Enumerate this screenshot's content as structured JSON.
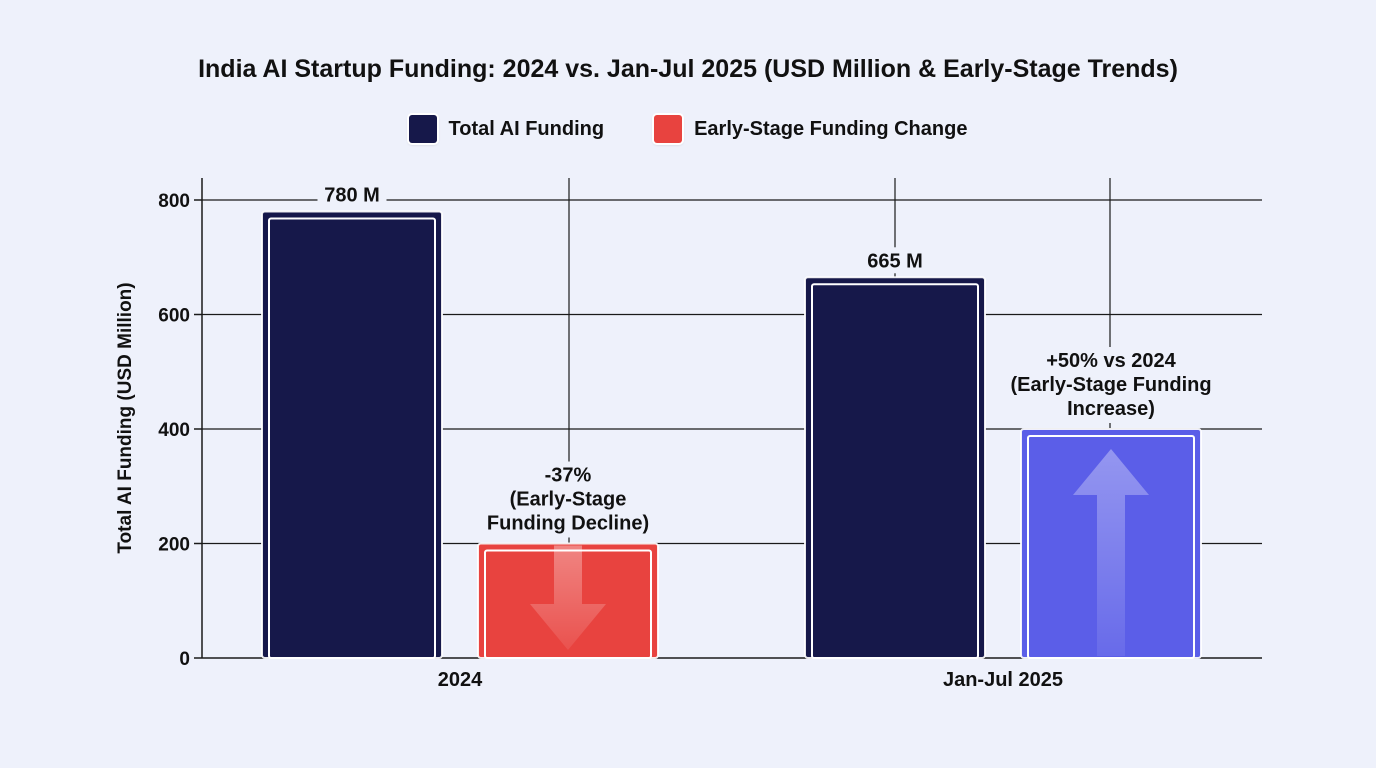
{
  "chart_data": {
    "type": "bar",
    "title": "India AI Startup Funding: 2024 vs. Jan-Jul 2025 (USD Million & Early-Stage Trends)",
    "ylabel": "Total AI Funding (USD Million)",
    "xlabel": "",
    "ylim": [
      0,
      800
    ],
    "yticks": [
      "0",
      "200",
      "400",
      "600",
      "800"
    ],
    "categories": [
      "2024",
      "Jan-Jul 2025"
    ],
    "grid": true,
    "legend_position": "top-center",
    "legend": [
      {
        "label": "Total AI Funding",
        "color": "#16184a"
      },
      {
        "label": "Early-Stage Funding Change",
        "color": "#e8433f"
      }
    ],
    "series": [
      {
        "name": "Total AI Funding",
        "values": [
          780,
          665
        ],
        "labels": [
          "780 M",
          "665 M"
        ],
        "colors": [
          "#16184a",
          "#16184a"
        ]
      },
      {
        "name": "Early-Stage Funding Change",
        "values": [
          200,
          400
        ],
        "colors": [
          "#e8433f",
          "#5b5ee8"
        ],
        "arrows": [
          "down",
          "up"
        ]
      }
    ],
    "annotations": [
      {
        "lines": [
          "-37%",
          "(Early-Stage",
          "Funding Decline)"
        ]
      },
      {
        "lines": [
          "+50% vs 2024",
          "(Early-Stage Funding",
          "Increase)"
        ]
      }
    ]
  }
}
